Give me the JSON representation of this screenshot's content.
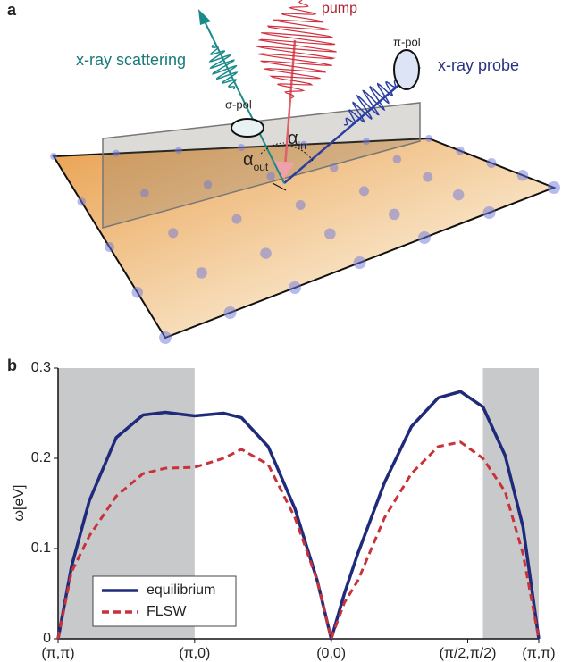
{
  "panel_a": {
    "label": "a",
    "pump": "pump",
    "x_ray_scattering": "x-ray scattering",
    "sigma_pol": "σ-pol",
    "pi_pol": "π-pol",
    "x_ray_probe": "x-ray probe",
    "alpha_out": {
      "symbol": "α",
      "subscript": "out"
    },
    "alpha_in": {
      "symbol": "α",
      "subscript": "in"
    }
  },
  "chart_data": {
    "type": "line",
    "panel_label": "b",
    "ylabel": "ω[eV]",
    "x": [
      0,
      0.098,
      0.229,
      0.426,
      0.622,
      0.786,
      1.0,
      1.211,
      1.343,
      1.539,
      1.735,
      1.899,
      2.0,
      2.096,
      2.194,
      2.39,
      2.587,
      2.783,
      2.947,
      3.111,
      3.274,
      3.405,
      3.52
    ],
    "series": [
      {
        "name": "equilibrium",
        "color": "#1f2a7a",
        "linestyle": "solid",
        "values": [
          0,
          0.08,
          0.153,
          0.223,
          0.248,
          0.251,
          0.247,
          0.25,
          0.245,
          0.213,
          0.144,
          0.064,
          0,
          0.05,
          0.094,
          0.173,
          0.235,
          0.267,
          0.274,
          0.257,
          0.203,
          0.124,
          0
        ]
      },
      {
        "name": "FLSW",
        "color": "#c8323a",
        "linestyle": "dashed",
        "values": [
          0,
          0.074,
          0.114,
          0.158,
          0.183,
          0.189,
          0.19,
          0.2,
          0.21,
          0.193,
          0.134,
          0.064,
          0,
          0.04,
          0.064,
          0.134,
          0.183,
          0.213,
          0.218,
          0.2,
          0.163,
          0.094,
          0
        ]
      }
    ],
    "xlim": [
      0,
      3.52
    ],
    "xticks": [
      {
        "value": 0,
        "label": "(π,π)"
      },
      {
        "value": 1,
        "label": "(π,0)"
      },
      {
        "value": 2,
        "label": "(0,0)"
      },
      {
        "value": 3,
        "label": "(π/2,π/2)"
      },
      {
        "value": 3.52,
        "label": "(π,π)"
      }
    ],
    "ylim": [
      0,
      0.3
    ],
    "yticks": [
      0,
      0.1,
      0.2,
      0.3
    ],
    "shaded_regions": [
      [
        0,
        1
      ],
      [
        3.111,
        3.52
      ]
    ],
    "shade_color": "#c8c9cb",
    "legend": "lower center"
  }
}
